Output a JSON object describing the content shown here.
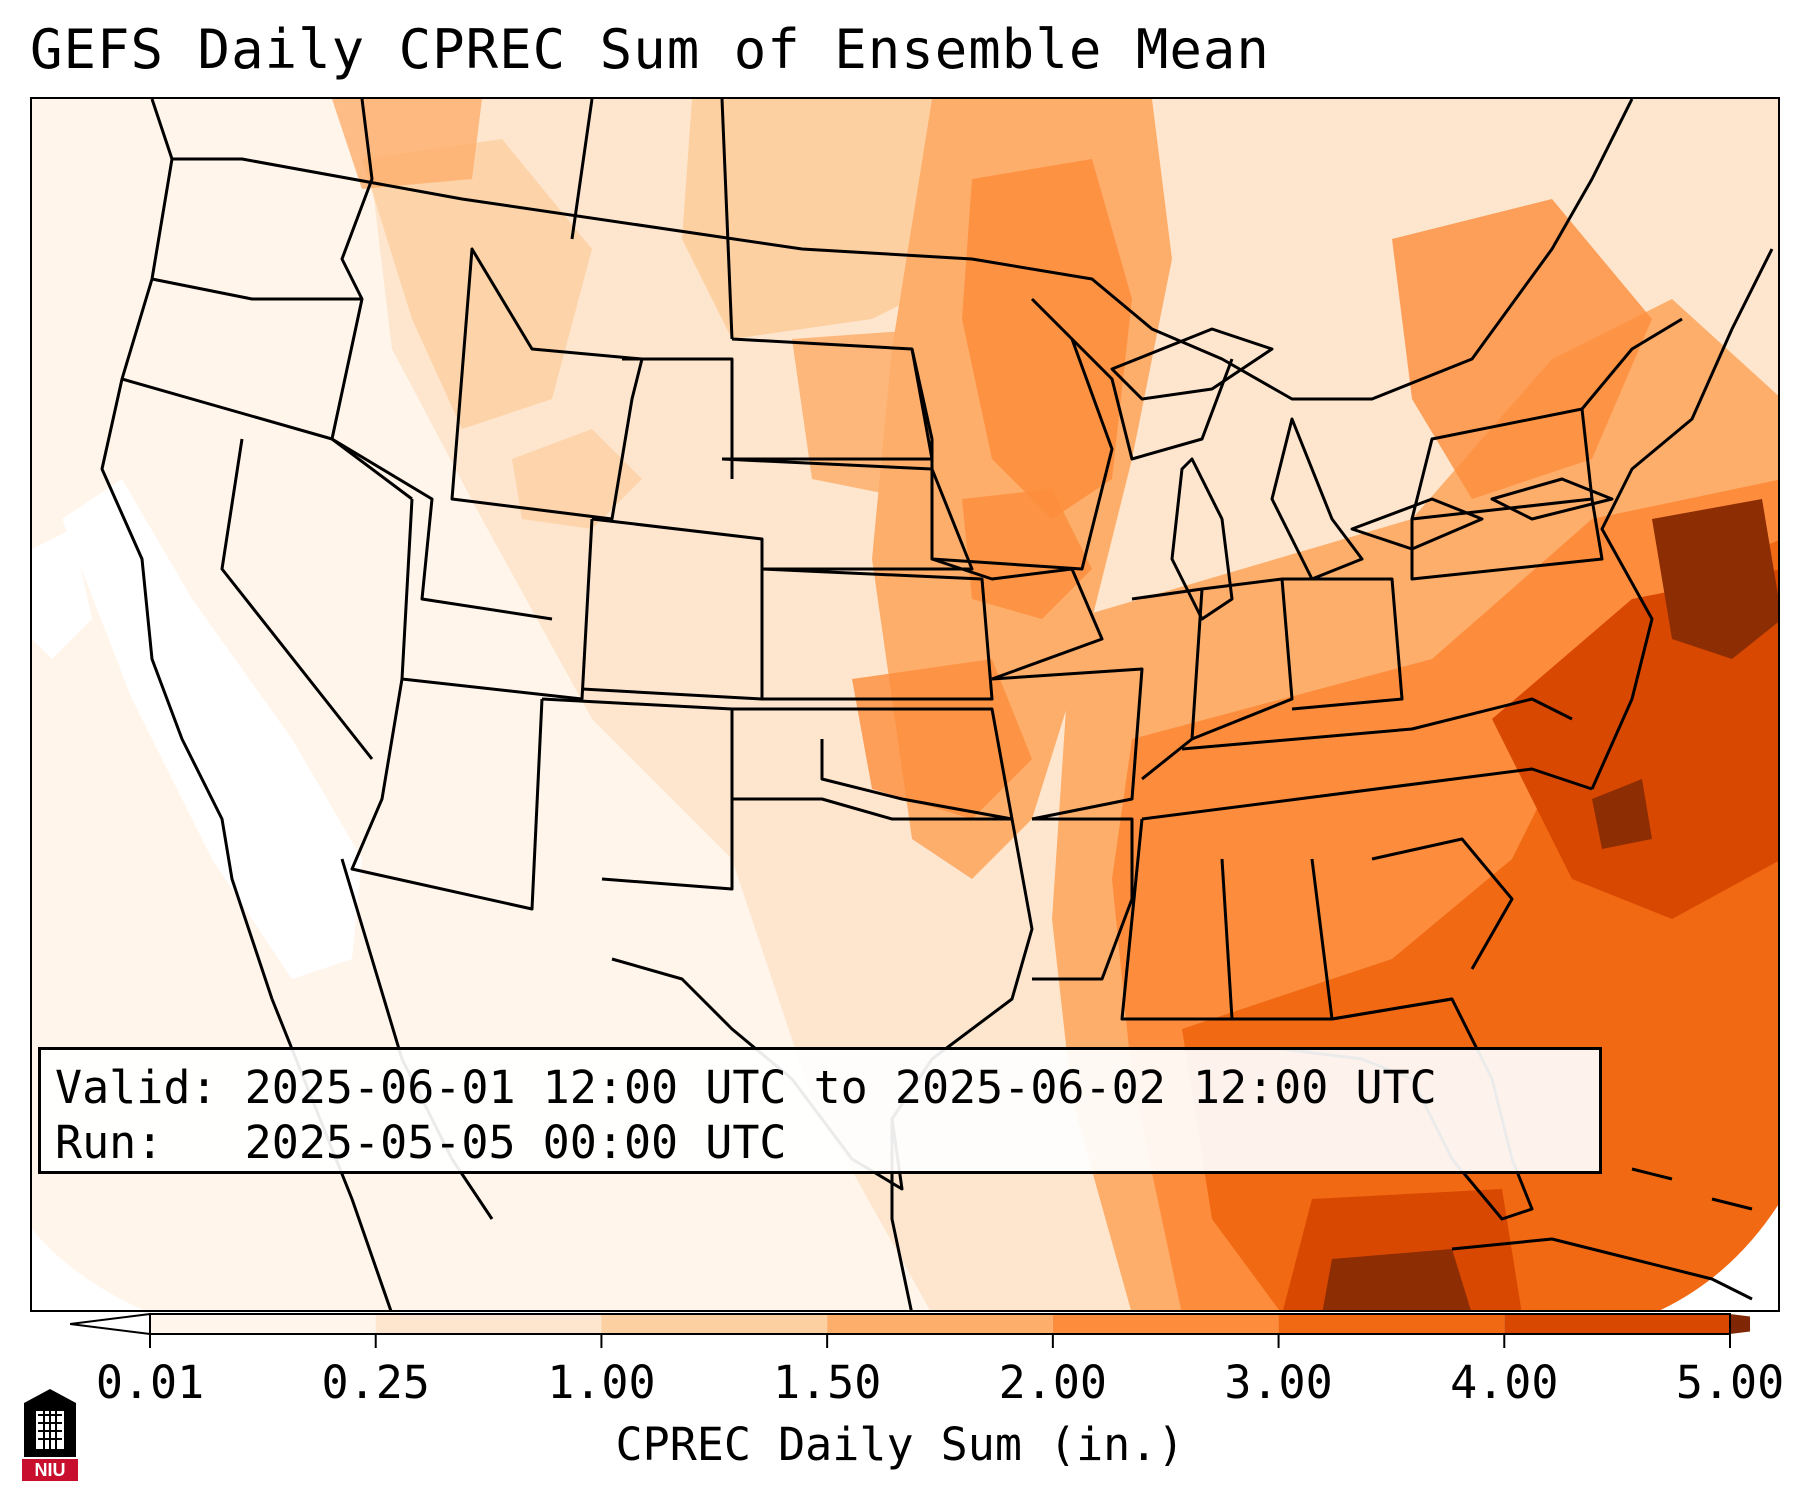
{
  "title": "GEFS Daily CPREC Sum of Ensemble Mean",
  "info": {
    "valid_label": "Valid:",
    "valid_text": "2025-06-01 12:00 UTC to 2025-06-02 12:00 UTC",
    "run_label": "Run:",
    "run_text": "2025-05-05 00:00 UTC"
  },
  "colorbar": {
    "label": "CPREC Daily Sum (in.)",
    "ticks": [
      "0.01",
      "0.25",
      "1.00",
      "1.50",
      "2.00",
      "3.00",
      "4.00",
      "5.00"
    ],
    "colors": [
      "#fff5eb",
      "#fee6ce",
      "#fdd0a2",
      "#fdae6b",
      "#fd8d3c",
      "#f16913",
      "#d94801",
      "#8c2d04"
    ],
    "under_color": "#ffffff",
    "over_color": "#7f2704"
  },
  "logo": {
    "text": "NIU",
    "colors": {
      "red": "#c8102e",
      "black": "#000000"
    }
  }
}
